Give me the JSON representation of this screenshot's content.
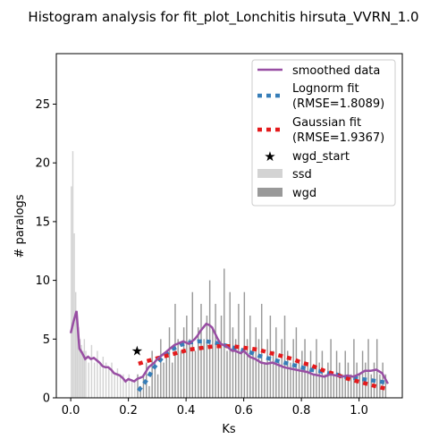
{
  "chart_data": {
    "type": "bar",
    "title": "Histogram analysis for fit_plot_Lonchitis hirsuta_VVRN_1.0",
    "xlabel": "Ks",
    "ylabel": "# paralogs",
    "xlim": [
      -0.05,
      1.15
    ],
    "ylim": [
      0,
      29.3
    ],
    "xticks": [
      "0.0",
      "0.2",
      "0.4",
      "0.6",
      "0.8",
      "1.0"
    ],
    "yticks": [
      "0",
      "5",
      "10",
      "15",
      "20",
      "25"
    ],
    "legend_position": "top-right",
    "grid": false,
    "colors": {
      "smoothed": "#984ea3",
      "lognorm": "#377eb8",
      "gaussian": "#e41a1c",
      "ssd": "#d3d3d3",
      "wgd": "#999999",
      "star": "#000000"
    },
    "legend": {
      "smoothed": "smoothed data",
      "lognorm_line1": "Lognorm fit",
      "lognorm_line2": "(RMSE=1.8089)",
      "gaussian_line1": "Gaussian fit",
      "gaussian_line2": "(RMSE=1.9367)",
      "wgd_start": "wgd_start",
      "ssd": "ssd",
      "wgd": "wgd"
    },
    "ssd_bins": {
      "x": [
        0.0,
        0.005,
        0.01,
        0.015,
        0.02,
        0.025,
        0.03,
        0.035,
        0.04,
        0.045,
        0.05,
        0.06,
        0.07,
        0.08,
        0.09,
        0.1,
        0.11,
        0.12,
        0.13,
        0.14,
        0.15,
        0.16,
        0.17,
        0.18,
        0.19,
        0.2,
        0.21,
        0.22
      ],
      "values": [
        18,
        21,
        14,
        9,
        7,
        6,
        5,
        4.5,
        4,
        5,
        4,
        3,
        4.5,
        3,
        4,
        3,
        3.5,
        3,
        2.5,
        3,
        2,
        2.5,
        2,
        2,
        1.5,
        2,
        1.5,
        1.5
      ]
    },
    "wgd_bins": {
      "x": [
        0.23,
        0.24,
        0.25,
        0.26,
        0.27,
        0.28,
        0.29,
        0.3,
        0.31,
        0.32,
        0.33,
        0.34,
        0.35,
        0.36,
        0.37,
        0.38,
        0.39,
        0.4,
        0.41,
        0.42,
        0.43,
        0.44,
        0.45,
        0.46,
        0.47,
        0.48,
        0.49,
        0.5,
        0.51,
        0.52,
        0.53,
        0.54,
        0.55,
        0.56,
        0.57,
        0.58,
        0.59,
        0.6,
        0.61,
        0.62,
        0.63,
        0.64,
        0.65,
        0.66,
        0.67,
        0.68,
        0.69,
        0.7,
        0.71,
        0.72,
        0.73,
        0.74,
        0.75,
        0.76,
        0.77,
        0.78,
        0.79,
        0.8,
        0.81,
        0.82,
        0.83,
        0.84,
        0.85,
        0.86,
        0.87,
        0.88,
        0.89,
        0.9,
        0.91,
        0.92,
        0.93,
        0.94,
        0.95,
        0.96,
        0.97,
        0.98,
        0.99,
        1.0,
        1.01,
        1.02,
        1.03,
        1.04,
        1.05,
        1.06,
        1.07,
        1.08,
        1.09
      ],
      "values": [
        2,
        1,
        2,
        3,
        1,
        4,
        3,
        2,
        5,
        3,
        4,
        6,
        3,
        8,
        5,
        4,
        6,
        7,
        5,
        9,
        4,
        6,
        8,
        5,
        7,
        10,
        6,
        8,
        5,
        7,
        11,
        4,
        9,
        6,
        5,
        8,
        4,
        9,
        5,
        7,
        4,
        6,
        5,
        8,
        3,
        5,
        7,
        4,
        6,
        3,
        5,
        7,
        4,
        3,
        5,
        6,
        3,
        4,
        5,
        3,
        4,
        2,
        5,
        3,
        4,
        2,
        3,
        5,
        2,
        4,
        3,
        2,
        4,
        3,
        2,
        5,
        3,
        2,
        4,
        3,
        5,
        2,
        3,
        5,
        2,
        3,
        2
      ]
    },
    "series": [
      {
        "name": "smoothed data",
        "x": [
          0.0,
          0.01,
          0.02,
          0.03,
          0.04,
          0.05,
          0.06,
          0.07,
          0.08,
          0.09,
          0.1,
          0.11,
          0.12,
          0.13,
          0.14,
          0.15,
          0.16,
          0.17,
          0.18,
          0.19,
          0.2,
          0.21,
          0.22,
          0.23,
          0.24,
          0.25,
          0.26,
          0.27,
          0.28,
          0.29,
          0.3,
          0.31,
          0.32,
          0.33,
          0.34,
          0.35,
          0.36,
          0.37,
          0.38,
          0.39,
          0.4,
          0.41,
          0.42,
          0.43,
          0.44,
          0.45,
          0.46,
          0.47,
          0.48,
          0.49,
          0.5,
          0.51,
          0.52,
          0.53,
          0.54,
          0.55,
          0.56,
          0.57,
          0.58,
          0.59,
          0.6,
          0.62,
          0.64,
          0.66,
          0.68,
          0.7,
          0.72,
          0.74,
          0.76,
          0.78,
          0.8,
          0.82,
          0.84,
          0.86,
          0.88,
          0.9,
          0.92,
          0.94,
          0.96,
          0.98,
          1.0,
          1.02,
          1.04,
          1.06,
          1.08,
          1.1
        ],
        "y": [
          5.5,
          6.5,
          7.4,
          4.2,
          3.8,
          3.3,
          3.5,
          3.3,
          3.4,
          3.2,
          3.0,
          2.7,
          2.6,
          2.6,
          2.4,
          2.1,
          2.0,
          1.9,
          1.7,
          1.4,
          1.6,
          1.5,
          1.4,
          1.6,
          1.7,
          1.8,
          2.2,
          2.6,
          2.8,
          3.0,
          3.3,
          3.5,
          3.7,
          3.9,
          4.1,
          4.3,
          4.5,
          4.6,
          4.7,
          4.8,
          4.7,
          4.6,
          4.8,
          5.0,
          5.3,
          5.7,
          6.0,
          6.3,
          6.2,
          6.0,
          5.5,
          5.0,
          4.6,
          4.5,
          4.4,
          4.2,
          4.0,
          4.0,
          3.9,
          3.8,
          4.0,
          3.5,
          3.3,
          3.0,
          2.9,
          3.0,
          2.8,
          2.6,
          2.5,
          2.4,
          2.3,
          2.2,
          2.0,
          1.9,
          1.8,
          2.0,
          1.9,
          1.8,
          1.9,
          1.8,
          2.0,
          2.3,
          2.3,
          2.4,
          2.1,
          1.2
        ]
      },
      {
        "name": "Lognorm fit",
        "x": [
          0.235,
          0.26,
          0.29,
          0.32,
          0.35,
          0.38,
          0.41,
          0.44,
          0.47,
          0.5,
          0.53,
          0.56,
          0.59,
          0.62,
          0.65,
          0.68,
          0.71,
          0.74,
          0.77,
          0.8,
          0.83,
          0.86,
          0.89,
          0.92,
          0.95,
          0.98,
          1.01,
          1.04,
          1.07,
          1.09
        ],
        "y": [
          0.6,
          1.4,
          2.6,
          3.5,
          4.1,
          4.5,
          4.7,
          4.8,
          4.8,
          4.7,
          4.5,
          4.3,
          4.1,
          3.9,
          3.6,
          3.4,
          3.2,
          3.0,
          2.8,
          2.6,
          2.4,
          2.3,
          2.1,
          2.0,
          1.8,
          1.7,
          1.6,
          1.5,
          1.4,
          1.3
        ]
      },
      {
        "name": "Gaussian fit",
        "x": [
          0.235,
          0.26,
          0.29,
          0.32,
          0.35,
          0.38,
          0.41,
          0.44,
          0.47,
          0.5,
          0.53,
          0.56,
          0.59,
          0.62,
          0.65,
          0.68,
          0.71,
          0.74,
          0.77,
          0.8,
          0.83,
          0.86,
          0.89,
          0.92,
          0.95,
          0.98,
          1.01,
          1.04,
          1.07,
          1.09
        ],
        "y": [
          2.9,
          3.1,
          3.3,
          3.5,
          3.7,
          3.9,
          4.1,
          4.2,
          4.3,
          4.4,
          4.4,
          4.4,
          4.3,
          4.2,
          4.1,
          3.9,
          3.7,
          3.5,
          3.3,
          3.0,
          2.8,
          2.5,
          2.2,
          2.0,
          1.7,
          1.5,
          1.3,
          1.1,
          0.9,
          0.8
        ]
      }
    ],
    "wgd_start": {
      "x": 0.23,
      "y": 4.0
    }
  }
}
